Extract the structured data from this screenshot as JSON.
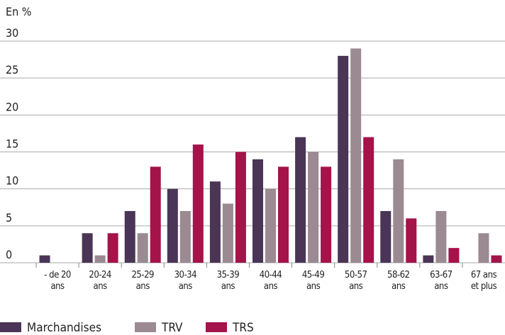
{
  "chart_data": {
    "type": "bar",
    "title": "En %",
    "categories": [
      "- de 20\nans",
      "20-24\nans",
      "25-29\nans",
      "30-34\nans",
      "35-39\nans",
      "40-44\nans",
      "45-49\nans",
      "50-57\nans",
      "58-62\nans",
      "63-67\nans",
      "67 ans\net plus"
    ],
    "series": [
      {
        "name": "Marchandises",
        "color": "#4a3556",
        "values": [
          1,
          4,
          7,
          10,
          11,
          14,
          17,
          28,
          7,
          1,
          0
        ]
      },
      {
        "name": "TRV",
        "color": "#9b8a91",
        "values": [
          0,
          1,
          4,
          7,
          8,
          10,
          15,
          29,
          14,
          7,
          4
        ]
      },
      {
        "name": "TRS",
        "color": "#a4134a",
        "values": [
          0,
          4,
          13,
          16,
          15,
          13,
          13,
          17,
          6,
          2,
          1
        ]
      }
    ],
    "ylim": [
      0,
      30
    ],
    "yticks": [
      0,
      5,
      10,
      15,
      20,
      25,
      30
    ],
    "grid": true,
    "legend": "bottom"
  }
}
